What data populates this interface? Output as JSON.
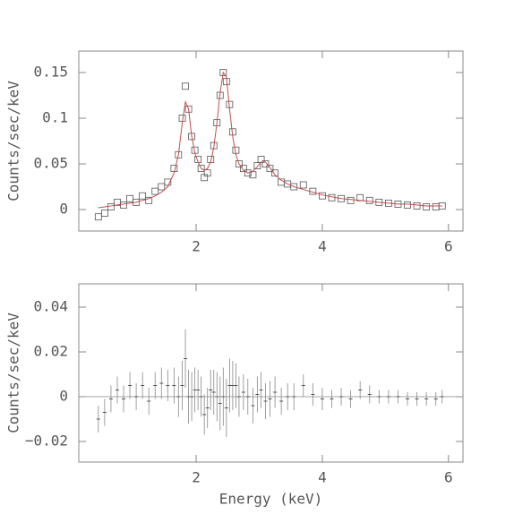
{
  "chart_data": [
    {
      "type": "scatter",
      "y_label": "Counts/sec/keV",
      "x": [
        0.45,
        0.55,
        0.65,
        0.75,
        0.85,
        0.95,
        1.05,
        1.15,
        1.25,
        1.35,
        1.45,
        1.55,
        1.65,
        1.72,
        1.78,
        1.83,
        1.88,
        1.93,
        1.98,
        2.03,
        2.08,
        2.13,
        2.18,
        2.23,
        2.28,
        2.33,
        2.38,
        2.43,
        2.48,
        2.53,
        2.58,
        2.63,
        2.68,
        2.75,
        2.82,
        2.9,
        2.97,
        3.03,
        3.1,
        3.17,
        3.25,
        3.35,
        3.45,
        3.55,
        3.7,
        3.85,
        4.0,
        4.15,
        4.3,
        4.45,
        4.6,
        4.75,
        4.9,
        5.05,
        5.2,
        5.35,
        5.5,
        5.65,
        5.8,
        5.9
      ],
      "series": [
        {
          "style": "marker",
          "color": "#555555",
          "values": [
            -0.008,
            -0.004,
            0.003,
            0.008,
            0.005,
            0.012,
            0.008,
            0.015,
            0.01,
            0.02,
            0.025,
            0.03,
            0.045,
            0.06,
            0.1,
            0.135,
            0.11,
            0.08,
            0.065,
            0.055,
            0.045,
            0.035,
            0.04,
            0.055,
            0.07,
            0.095,
            0.125,
            0.15,
            0.14,
            0.115,
            0.085,
            0.065,
            0.05,
            0.045,
            0.04,
            0.038,
            0.048,
            0.055,
            0.05,
            0.045,
            0.04,
            0.03,
            0.028,
            0.025,
            0.027,
            0.02,
            0.015,
            0.013,
            0.012,
            0.01,
            0.013,
            0.01,
            0.008,
            0.007,
            0.006,
            0.005,
            0.004,
            0.003,
            0.003,
            0.004
          ]
        },
        {
          "style": "line",
          "color": "#c0504d",
          "values": [
            0.002,
            0.003,
            0.004,
            0.005,
            0.006,
            0.007,
            0.008,
            0.01,
            0.012,
            0.015,
            0.019,
            0.025,
            0.04,
            0.06,
            0.095,
            0.118,
            0.11,
            0.08,
            0.062,
            0.052,
            0.045,
            0.043,
            0.045,
            0.052,
            0.068,
            0.095,
            0.128,
            0.15,
            0.145,
            0.11,
            0.08,
            0.06,
            0.05,
            0.043,
            0.04,
            0.042,
            0.047,
            0.052,
            0.052,
            0.046,
            0.038,
            0.032,
            0.028,
            0.025,
            0.022,
            0.019,
            0.016,
            0.014,
            0.012,
            0.011,
            0.01,
            0.009,
            0.008,
            0.007,
            0.006,
            0.006,
            0.005,
            0.004,
            0.004,
            0.004
          ]
        }
      ],
      "xlim": [
        0.14,
        6.23
      ],
      "xticks": [
        2,
        4,
        6
      ],
      "ylim": [
        -0.0235,
        0.1735
      ],
      "yticks": [
        0,
        0.05,
        0.1,
        0.15
      ]
    },
    {
      "type": "errorbar",
      "x_label": "Energy (keV)",
      "y_label": "Counts/sec/keV",
      "color": "#888888",
      "hline": 0,
      "x": [
        0.45,
        0.55,
        0.65,
        0.75,
        0.85,
        0.95,
        1.05,
        1.15,
        1.25,
        1.35,
        1.45,
        1.55,
        1.65,
        1.72,
        1.78,
        1.83,
        1.88,
        1.93,
        1.98,
        2.03,
        2.08,
        2.13,
        2.18,
        2.23,
        2.28,
        2.33,
        2.38,
        2.43,
        2.48,
        2.53,
        2.58,
        2.63,
        2.68,
        2.75,
        2.82,
        2.9,
        2.97,
        3.03,
        3.1,
        3.17,
        3.25,
        3.35,
        3.45,
        3.55,
        3.7,
        3.85,
        4.0,
        4.15,
        4.3,
        4.45,
        4.6,
        4.75,
        4.9,
        5.05,
        5.2,
        5.35,
        5.5,
        5.65,
        5.8,
        5.9
      ],
      "values": [
        -0.01,
        -0.007,
        -0.001,
        0.003,
        -0.001,
        0.005,
        0.0,
        0.005,
        -0.002,
        0.005,
        0.006,
        0.005,
        0.005,
        0.0,
        0.005,
        0.017,
        0.0,
        0.0,
        0.003,
        0.003,
        0.0,
        -0.008,
        -0.005,
        0.003,
        0.002,
        0.0,
        -0.003,
        0.0,
        -0.005,
        0.005,
        0.005,
        0.005,
        0.0,
        0.002,
        0.0,
        -0.004,
        0.001,
        0.003,
        -0.002,
        -0.001,
        0.002,
        -0.002,
        0.0,
        0.0,
        0.005,
        0.001,
        -0.001,
        -0.001,
        0.0,
        -0.001,
        0.003,
        0.001,
        0.0,
        0.0,
        0.0,
        -0.001,
        -0.001,
        -0.001,
        -0.001,
        0.0
      ],
      "errors": [
        0.006,
        0.006,
        0.006,
        0.006,
        0.006,
        0.006,
        0.006,
        0.006,
        0.006,
        0.006,
        0.007,
        0.007,
        0.008,
        0.009,
        0.011,
        0.013,
        0.012,
        0.011,
        0.01,
        0.009,
        0.009,
        0.009,
        0.009,
        0.009,
        0.01,
        0.011,
        0.012,
        0.013,
        0.013,
        0.012,
        0.011,
        0.01,
        0.009,
        0.008,
        0.008,
        0.008,
        0.008,
        0.008,
        0.008,
        0.008,
        0.007,
        0.006,
        0.006,
        0.006,
        0.005,
        0.005,
        0.005,
        0.004,
        0.004,
        0.004,
        0.004,
        0.004,
        0.003,
        0.003,
        0.003,
        0.003,
        0.003,
        0.003,
        0.003,
        0.003
      ],
      "xlim": [
        0.14,
        6.23
      ],
      "xticks": [
        2,
        4,
        6
      ],
      "ylim": [
        -0.0292,
        0.0504
      ],
      "yticks": [
        {
          "value": -0.02,
          "label": "−0.02"
        },
        0,
        0.02,
        0.04
      ]
    }
  ]
}
